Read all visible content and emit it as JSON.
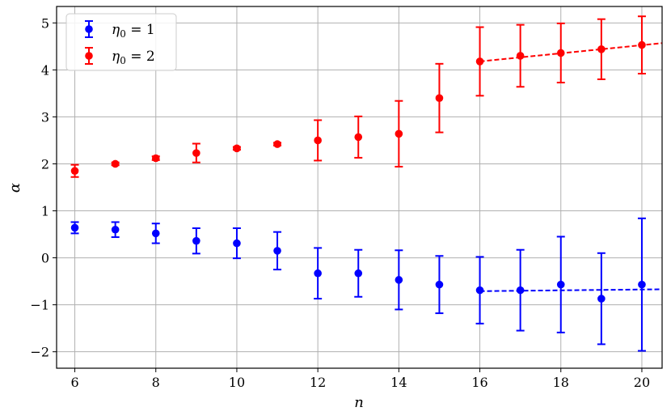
{
  "chart_data": {
    "type": "scatter",
    "title": "",
    "xlabel": "n",
    "ylabel": "α",
    "xlim": [
      5.55,
      20.5
    ],
    "ylim": [
      -2.35,
      5.35
    ],
    "xticks": [
      6,
      8,
      10,
      12,
      14,
      16,
      18,
      20
    ],
    "xtick_labels": [
      "6",
      "8",
      "10",
      "12",
      "14",
      "16",
      "18",
      "20"
    ],
    "yticks": [
      -2,
      -1,
      0,
      1,
      2,
      3,
      4,
      5
    ],
    "ytick_labels": [
      "−2",
      "−1",
      "0",
      "1",
      "2",
      "3",
      "4",
      "5"
    ],
    "grid": true,
    "legend_position": "top-left",
    "series": [
      {
        "name": "η0 = 1",
        "color": "#0000ff",
        "x": [
          6,
          7,
          8,
          9,
          10,
          11,
          12,
          13,
          14,
          15,
          16,
          17,
          18,
          19,
          20
        ],
        "y": [
          0.64,
          0.6,
          0.52,
          0.36,
          0.31,
          0.15,
          -0.33,
          -0.33,
          -0.47,
          -0.57,
          -0.69,
          -0.69,
          -0.57,
          -0.87,
          -0.57
        ],
        "yerr": [
          0.12,
          0.16,
          0.21,
          0.27,
          0.32,
          0.4,
          0.54,
          0.5,
          0.63,
          0.61,
          0.71,
          0.86,
          1.02,
          0.97,
          1.41
        ],
        "fit": {
          "x": [
            16,
            20.5
          ],
          "y": [
            -0.71,
            -0.67
          ]
        }
      },
      {
        "name": "η0 = 2",
        "color": "#ff0000",
        "x": [
          6,
          7,
          8,
          9,
          10,
          11,
          12,
          13,
          14,
          15,
          16,
          17,
          18,
          19,
          20
        ],
        "y": [
          1.85,
          2.0,
          2.12,
          2.23,
          2.33,
          2.42,
          2.5,
          2.57,
          2.64,
          3.4,
          4.18,
          4.3,
          4.36,
          4.44,
          4.53
        ],
        "yerr": [
          0.13,
          0.03,
          0.04,
          0.2,
          0.03,
          0.03,
          0.43,
          0.44,
          0.7,
          0.73,
          0.73,
          0.66,
          0.63,
          0.64,
          0.61
        ],
        "fit": {
          "x": [
            16,
            20.5
          ],
          "y": [
            4.18,
            4.57
          ]
        }
      }
    ],
    "legend_entries": [
      {
        "prefix": "η",
        "sub": "0",
        "suffix": " = 1",
        "color": "#0000ff"
      },
      {
        "prefix": "η",
        "sub": "0",
        "suffix": " = 2",
        "color": "#ff0000"
      }
    ]
  }
}
